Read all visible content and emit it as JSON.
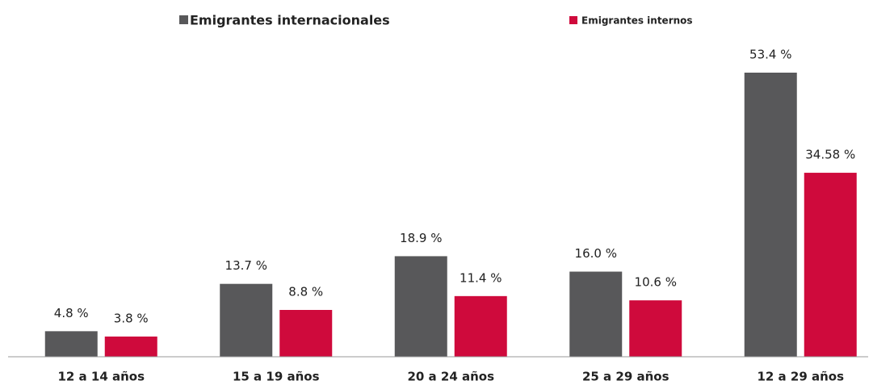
{
  "chart_data": {
    "type": "bar",
    "categories": [
      "12 a 14 años",
      "15 a 19 años",
      "20 a 24 años",
      "25 a 29 años",
      "12 a 29 años"
    ],
    "series": [
      {
        "name": "Emigrantes internacionales",
        "color": "#58585a",
        "values": [
          4.8,
          13.7,
          18.9,
          16.0,
          53.4
        ],
        "value_labels": [
          "4.8 %",
          "13.7 %",
          "18.9 %",
          "16.0 %",
          "53.4 %"
        ]
      },
      {
        "name": "Emigrantes internos",
        "color": "#cf0a3c",
        "values": [
          3.8,
          8.8,
          11.4,
          10.6,
          34.58
        ],
        "value_labels": [
          "3.8 %",
          "8.8 %",
          "11.4 %",
          "10.6 %",
          "34.58 %"
        ]
      }
    ]
  }
}
